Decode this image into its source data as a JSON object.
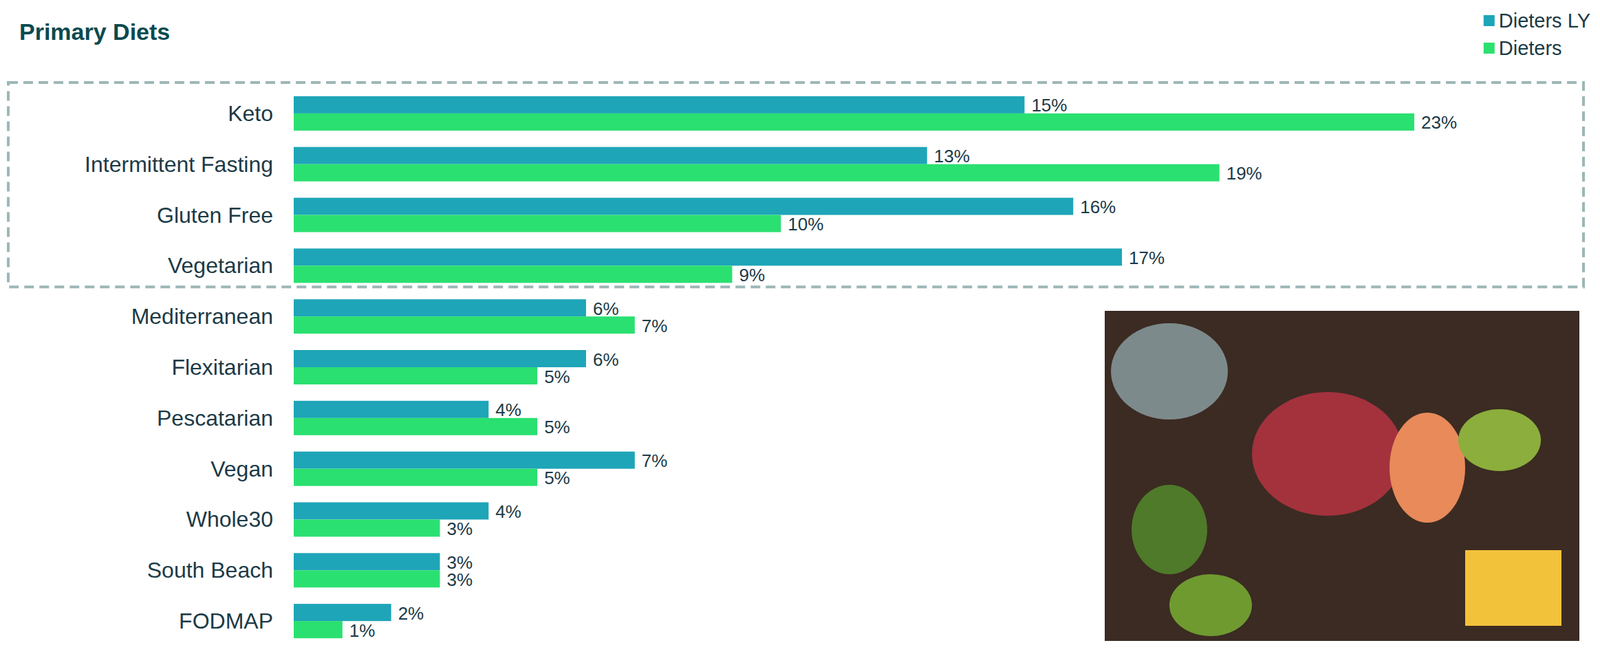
{
  "chart_data": {
    "type": "bar",
    "title": "Primary Diets",
    "orientation": "horizontal",
    "categories": [
      "Keto",
      "Intermittent Fasting",
      "Gluten Free",
      "Vegetarian",
      "Mediterranean",
      "Flexitarian",
      "Pescatarian",
      "Vegan",
      "Whole30",
      "South Beach",
      "FODMAP"
    ],
    "series": [
      {
        "name": "Dieters LY",
        "color": "#1ea5b8",
        "values": [
          15,
          13,
          16,
          17,
          6,
          6,
          4,
          7,
          4,
          3,
          2
        ],
        "value_labels": [
          "15%",
          "13%",
          "16%",
          "17%",
          "6%",
          "6%",
          "4%",
          "7%",
          "4%",
          "3%",
          "2%"
        ]
      },
      {
        "name": "Dieters",
        "color": "#2ae070",
        "values": [
          23,
          19,
          10,
          9,
          7,
          5,
          5,
          5,
          3,
          3,
          1
        ],
        "value_labels": [
          "23%",
          "19%",
          "10%",
          "9%",
          "7%",
          "5%",
          "5%",
          "5%",
          "3%",
          "3%",
          "1%"
        ]
      }
    ],
    "xlim": [
      0,
      23
    ],
    "data_labels": true,
    "tick_labels": "y",
    "legend": "top-right",
    "grid": false
  }
}
